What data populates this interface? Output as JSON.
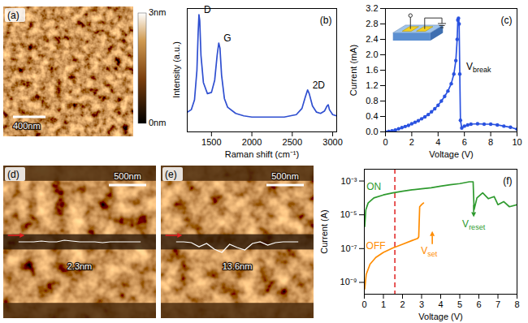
{
  "chart_data": [
    {
      "type": "image",
      "panel": "(a)",
      "scale_bar": "400nm",
      "colorbar": {
        "range": [
          0,
          3
        ],
        "ticks": [
          {
            "value": 0,
            "label": "0nm"
          },
          {
            "value": 3,
            "label": "3nm"
          }
        ]
      }
    },
    {
      "type": "line",
      "panel": "(b)",
      "xlabel": "Raman shift (cm⁻¹)",
      "ylabel": "Intensity (a.u.)",
      "x": [
        1200,
        1250,
        1290,
        1320,
        1335,
        1345,
        1355,
        1370,
        1400,
        1450,
        1500,
        1540,
        1570,
        1590,
        1605,
        1625,
        1660,
        1700,
        1800,
        1900,
        2000,
        2200,
        2400,
        2550,
        2620,
        2660,
        2690,
        2710,
        2750,
        2800,
        2850,
        2900,
        2930,
        2945,
        2960,
        3000,
        3050
      ],
      "values": [
        0.16,
        0.18,
        0.26,
        0.5,
        0.8,
        0.95,
        0.9,
        0.62,
        0.4,
        0.31,
        0.32,
        0.42,
        0.62,
        0.72,
        0.68,
        0.46,
        0.27,
        0.2,
        0.15,
        0.13,
        0.12,
        0.12,
        0.12,
        0.14,
        0.19,
        0.28,
        0.34,
        0.31,
        0.21,
        0.16,
        0.15,
        0.17,
        0.21,
        0.22,
        0.18,
        0.14,
        0.13
      ],
      "color": "#2f4fd0",
      "xlim": [
        1200,
        3050
      ],
      "ylim": [
        0,
        1
      ],
      "xticks": [
        1500,
        2000,
        2500,
        3000
      ],
      "tick_labels": "x",
      "annotations": [
        {
          "text": "D",
          "x": 1345,
          "y": 0.95
        },
        {
          "text": "G",
          "x": 1590,
          "y": 0.72
        },
        {
          "text": "2D",
          "x": 2690,
          "y": 0.34
        }
      ]
    },
    {
      "type": "line",
      "panel": "(c)",
      "xlabel": "Voltage (V)",
      "ylabel": "Current (mA)",
      "x": [
        0,
        0.25,
        0.5,
        0.75,
        1,
        1.25,
        1.5,
        1.75,
        2,
        2.25,
        2.5,
        2.75,
        3,
        3.25,
        3.5,
        3.75,
        4,
        4.25,
        4.5,
        4.75,
        5,
        5.2,
        5.35,
        5.45,
        5.5,
        5.55,
        5.6,
        5.65,
        5.7,
        5.8,
        6,
        6.25,
        6.5,
        7,
        7.5,
        8,
        8.5,
        9,
        9.5,
        10
      ],
      "values": [
        0,
        0.01,
        0.03,
        0.05,
        0.08,
        0.11,
        0.14,
        0.17,
        0.21,
        0.25,
        0.29,
        0.34,
        0.39,
        0.45,
        0.52,
        0.6,
        0.69,
        0.8,
        0.92,
        1.06,
        1.25,
        1.5,
        1.85,
        2.4,
        2.9,
        2.95,
        2.8,
        1.5,
        0.3,
        0.1,
        0.15,
        0.18,
        0.2,
        0.21,
        0.2,
        0.2,
        0.18,
        0.15,
        0.12,
        0.07
      ],
      "color": "#2a52e0",
      "marker": "circle",
      "xlim": [
        0,
        10
      ],
      "ylim": [
        0,
        3.2
      ],
      "xticks": [
        0,
        2,
        4,
        6,
        8,
        10
      ],
      "yticks": [
        {
          "value": 0,
          "label": "0.0"
        },
        {
          "value": 0.4,
          "label": "0.4"
        },
        {
          "value": 0.8,
          "label": "0.8"
        },
        {
          "value": 1.2,
          "label": "1.2"
        },
        {
          "value": 1.6,
          "label": "1.6"
        },
        {
          "value": 2,
          "label": "2.0"
        },
        {
          "value": 2.4,
          "label": "2.4"
        },
        {
          "value": 2.8,
          "label": "2.8"
        },
        {
          "value": 3.2,
          "label": "3.2"
        }
      ],
      "annotations": [
        {
          "text": "V",
          "subscript": "break",
          "x": 5.55
        }
      ]
    },
    {
      "type": "image",
      "panel": "(d)",
      "scale_bar": "500nm",
      "profile_label": "2.3nm"
    },
    {
      "type": "image",
      "panel": "(e)",
      "scale_bar": "500nm",
      "profile_label": "13.6nm"
    },
    {
      "type": "line",
      "panel": "(f)",
      "xlabel": "Voltage (V)",
      "ylabel": "Current (A)",
      "log": "y",
      "series": [
        {
          "name": "ON",
          "color": "#2e9a2e",
          "x": [
            0.02,
            0.08,
            0.2,
            0.5,
            1,
            1.5,
            2,
            2.5,
            3,
            3.5,
            4,
            4.5,
            5,
            5.5,
            5.7,
            5.75,
            5.9,
            6.2,
            6.5,
            6.8,
            7,
            7.3,
            7.6,
            8
          ],
          "values": [
            2e-06,
            2e-05,
            5e-05,
            0.0001,
            0.00015,
            0.0002,
            0.00025,
            0.0003,
            0.00035,
            0.0004,
            0.0005,
            0.0006,
            0.0007,
            0.0009,
            0.0009,
            2e-05,
            0.0001,
            0.0002,
            9e-05,
            0.00012,
            4e-05,
            6e-05,
            3e-05,
            4e-05
          ]
        },
        {
          "name": "OFF",
          "color": "#ff8c00",
          "x": [
            0.02,
            0.1,
            0.3,
            0.6,
            1,
            1.5,
            2,
            2.5,
            2.8,
            2.85,
            2.9,
            3,
            3.1
          ],
          "values": [
            4e-10,
            3e-09,
            1.2e-08,
            3e-08,
            6e-08,
            1.1e-07,
            1.8e-07,
            3e-07,
            4e-07,
            5e-07,
            3e-05,
            4e-05,
            5e-05
          ]
        }
      ],
      "xlim": [
        0,
        8
      ],
      "ylim": [
        2e-10,
        0.005
      ],
      "xticks": [
        0,
        1,
        2,
        3,
        4,
        5,
        6,
        7,
        8
      ],
      "yticks": [
        {
          "value": 1e-09,
          "label": "10⁻⁹"
        },
        {
          "value": 1e-07,
          "label": "10⁻⁷"
        },
        {
          "value": 1e-05,
          "label": "10⁻⁵"
        },
        {
          "value": 0.001,
          "label": "10⁻³"
        }
      ],
      "vline": 1.6,
      "annotations": [
        {
          "text": "V",
          "subscript": "set",
          "x": 2.9,
          "color": "#ff8c00"
        },
        {
          "text": "V",
          "subscript": "reset",
          "x": 5.75,
          "color": "#2e9a2e"
        }
      ]
    }
  ]
}
